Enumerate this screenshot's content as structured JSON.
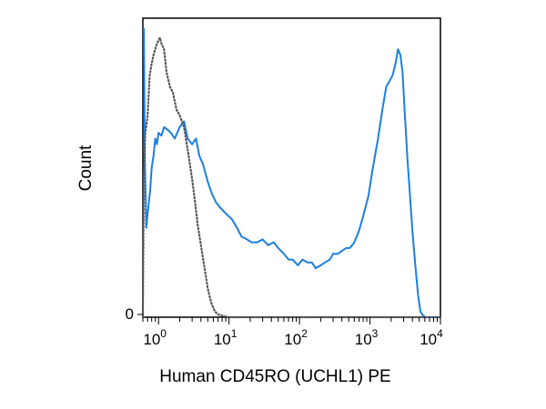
{
  "chart_data": {
    "type": "line",
    "title": "",
    "xlabel": "Human CD45RO (UCHL1) PE",
    "ylabel": "Count",
    "x_scale": "log",
    "xlim": [
      0.6,
      10000
    ],
    "ylim": [
      0,
      100
    ],
    "x_ticks": [
      {
        "base": "10",
        "exp": "0"
      },
      {
        "base": "10",
        "exp": "1"
      },
      {
        "base": "10",
        "exp": "2"
      },
      {
        "base": "10",
        "exp": "3"
      },
      {
        "base": "10",
        "exp": "4"
      }
    ],
    "y_ticks": [
      "0"
    ],
    "grid": false,
    "series": [
      {
        "style": "solid",
        "color": "#1c7fe0",
        "x": [
          0.6,
          0.62,
          0.64,
          0.67,
          0.7,
          0.73,
          0.76,
          0.8,
          0.85,
          0.9,
          0.95,
          1.0,
          1.1,
          1.2,
          1.35,
          1.5,
          1.7,
          2.0,
          2.3,
          2.6,
          3.0,
          3.4,
          3.8,
          4.3,
          5.0,
          5.7,
          6.5,
          7.5,
          9.0,
          11,
          13,
          15,
          18,
          21,
          25,
          30,
          36,
          43,
          50,
          60,
          70,
          80,
          95,
          110,
          130,
          150,
          170,
          200,
          230,
          270,
          300,
          350,
          400,
          460,
          520,
          600,
          700,
          800,
          950,
          1100,
          1300,
          1500,
          1700,
          1900,
          2100,
          2300,
          2500,
          2700,
          2900,
          3100,
          3400,
          3700,
          4000,
          4400,
          4800,
          5200,
          5700,
          6200,
          6800,
          7500,
          8300,
          10000
        ],
        "y": [
          100,
          100,
          55,
          31,
          36,
          40,
          44,
          52,
          56,
          62,
          60,
          64,
          63,
          66,
          65,
          64,
          62,
          66,
          68,
          62,
          60,
          62,
          56,
          53,
          47,
          43,
          40,
          38,
          36,
          34,
          31,
          28,
          27,
          26,
          26,
          27,
          25,
          26,
          24,
          22,
          20,
          20,
          18,
          20,
          19,
          19,
          17,
          18,
          19,
          20,
          22,
          22,
          23,
          24,
          24,
          26,
          30,
          35,
          42,
          52,
          62,
          72,
          80,
          82,
          84,
          88,
          93,
          91,
          85,
          72,
          55,
          42,
          30,
          18,
          8,
          2,
          0.5,
          0,
          0,
          0,
          0,
          0
        ]
      },
      {
        "style": "dotted",
        "color": "#555555",
        "x": [
          0.6,
          0.62,
          0.65,
          0.7,
          0.75,
          0.8,
          0.85,
          0.9,
          0.95,
          1.0,
          1.05,
          1.1,
          1.2,
          1.3,
          1.45,
          1.6,
          1.8,
          2.0,
          2.3,
          2.6,
          3.0,
          3.3,
          3.6,
          4.0,
          4.5,
          5.0,
          5.6,
          6.3,
          7.0,
          8.0,
          10,
          12,
          10000
        ],
        "y": [
          0,
          50,
          64,
          70,
          84,
          88,
          91,
          93,
          95,
          96,
          97,
          95,
          93,
          85,
          80,
          78,
          72,
          70,
          66,
          58,
          48,
          40,
          32,
          25,
          17,
          10,
          5,
          2,
          1,
          0.5,
          0,
          0,
          0
        ]
      }
    ]
  }
}
